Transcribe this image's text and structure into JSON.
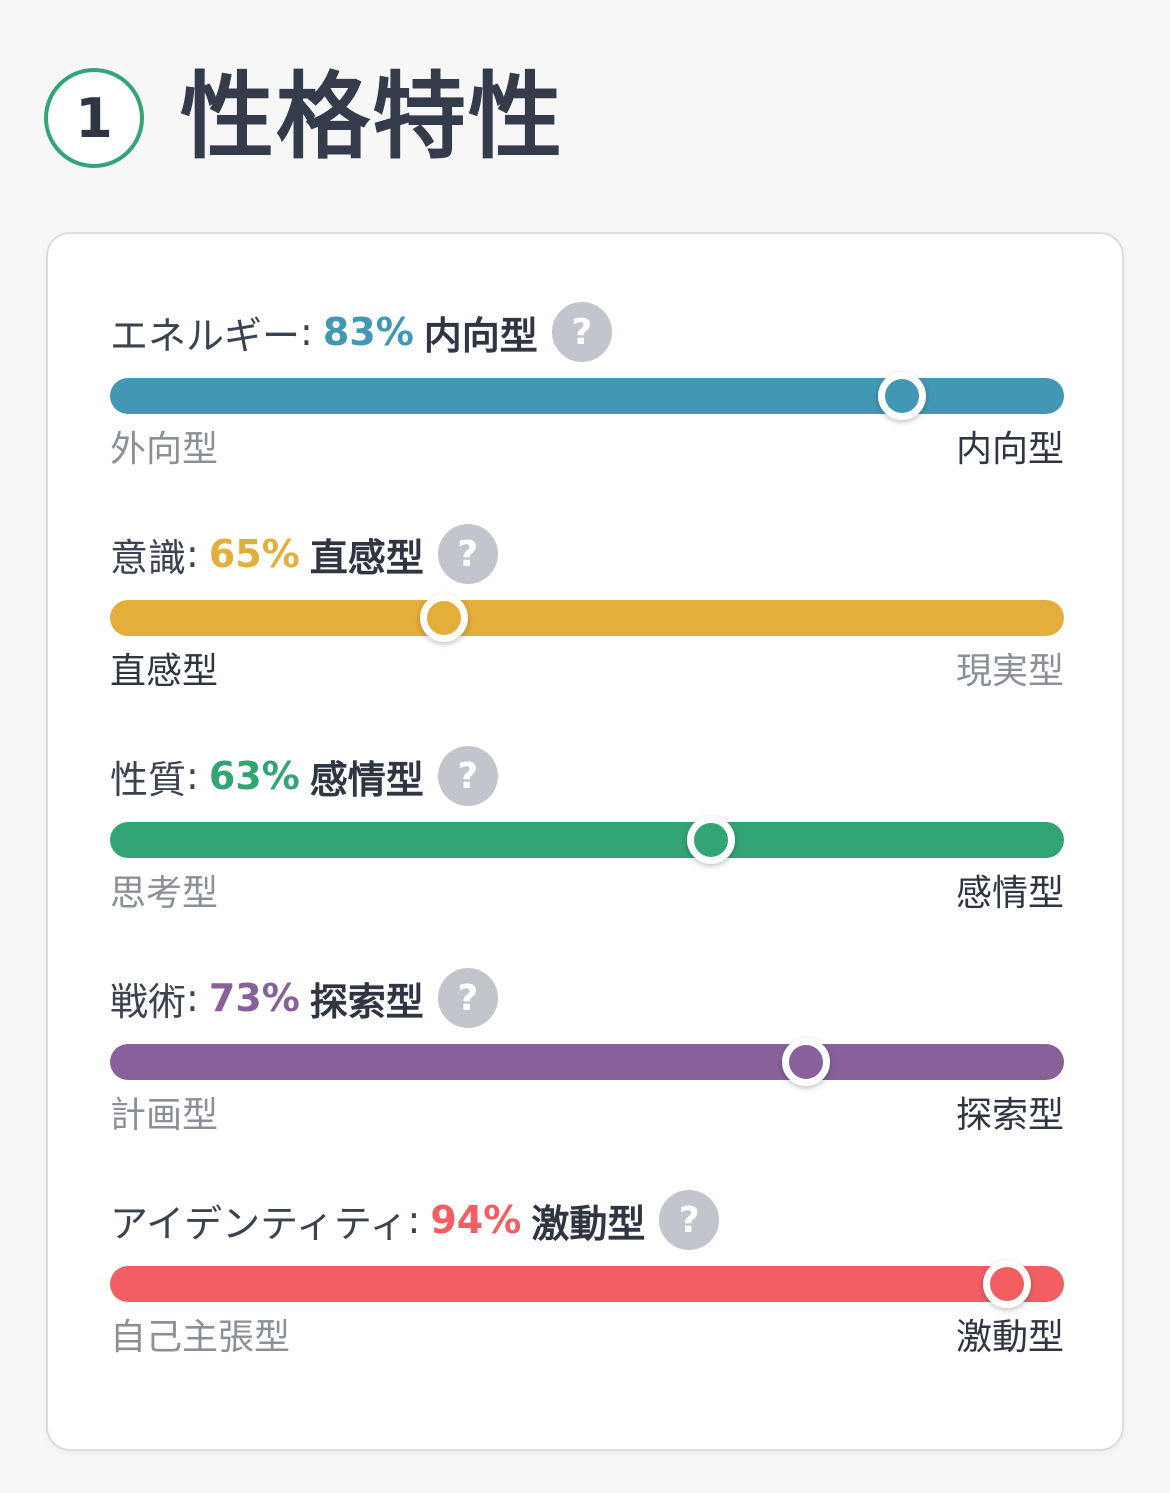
{
  "section": {
    "number": "1",
    "title": "性格特性"
  },
  "help_glyph": "?",
  "colon": ":",
  "traits": [
    {
      "name": "エネルギー",
      "percent_label": "83%",
      "percent": 83,
      "result": "内向型",
      "color": "#4298b4",
      "left_pole": "外向型",
      "right_pole": "内向型",
      "selected_side": "right"
    },
    {
      "name": "意識",
      "percent_label": "65%",
      "percent": 65,
      "result": "直感型",
      "color": "#e4ae3a",
      "left_pole": "直感型",
      "right_pole": "現実型",
      "selected_side": "left"
    },
    {
      "name": "性質",
      "percent_label": "63%",
      "percent": 63,
      "result": "感情型",
      "color": "#33a474",
      "left_pole": "思考型",
      "right_pole": "感情型",
      "selected_side": "right"
    },
    {
      "name": "戦術",
      "percent_label": "73%",
      "percent": 73,
      "result": "探索型",
      "color": "#88619a",
      "left_pole": "計画型",
      "right_pole": "探索型",
      "selected_side": "right"
    },
    {
      "name": "アイデンティティ",
      "percent_label": "94%",
      "percent": 94,
      "result": "激動型",
      "color": "#f25e62",
      "left_pole": "自己主張型",
      "right_pole": "激動型",
      "selected_side": "right"
    }
  ]
}
